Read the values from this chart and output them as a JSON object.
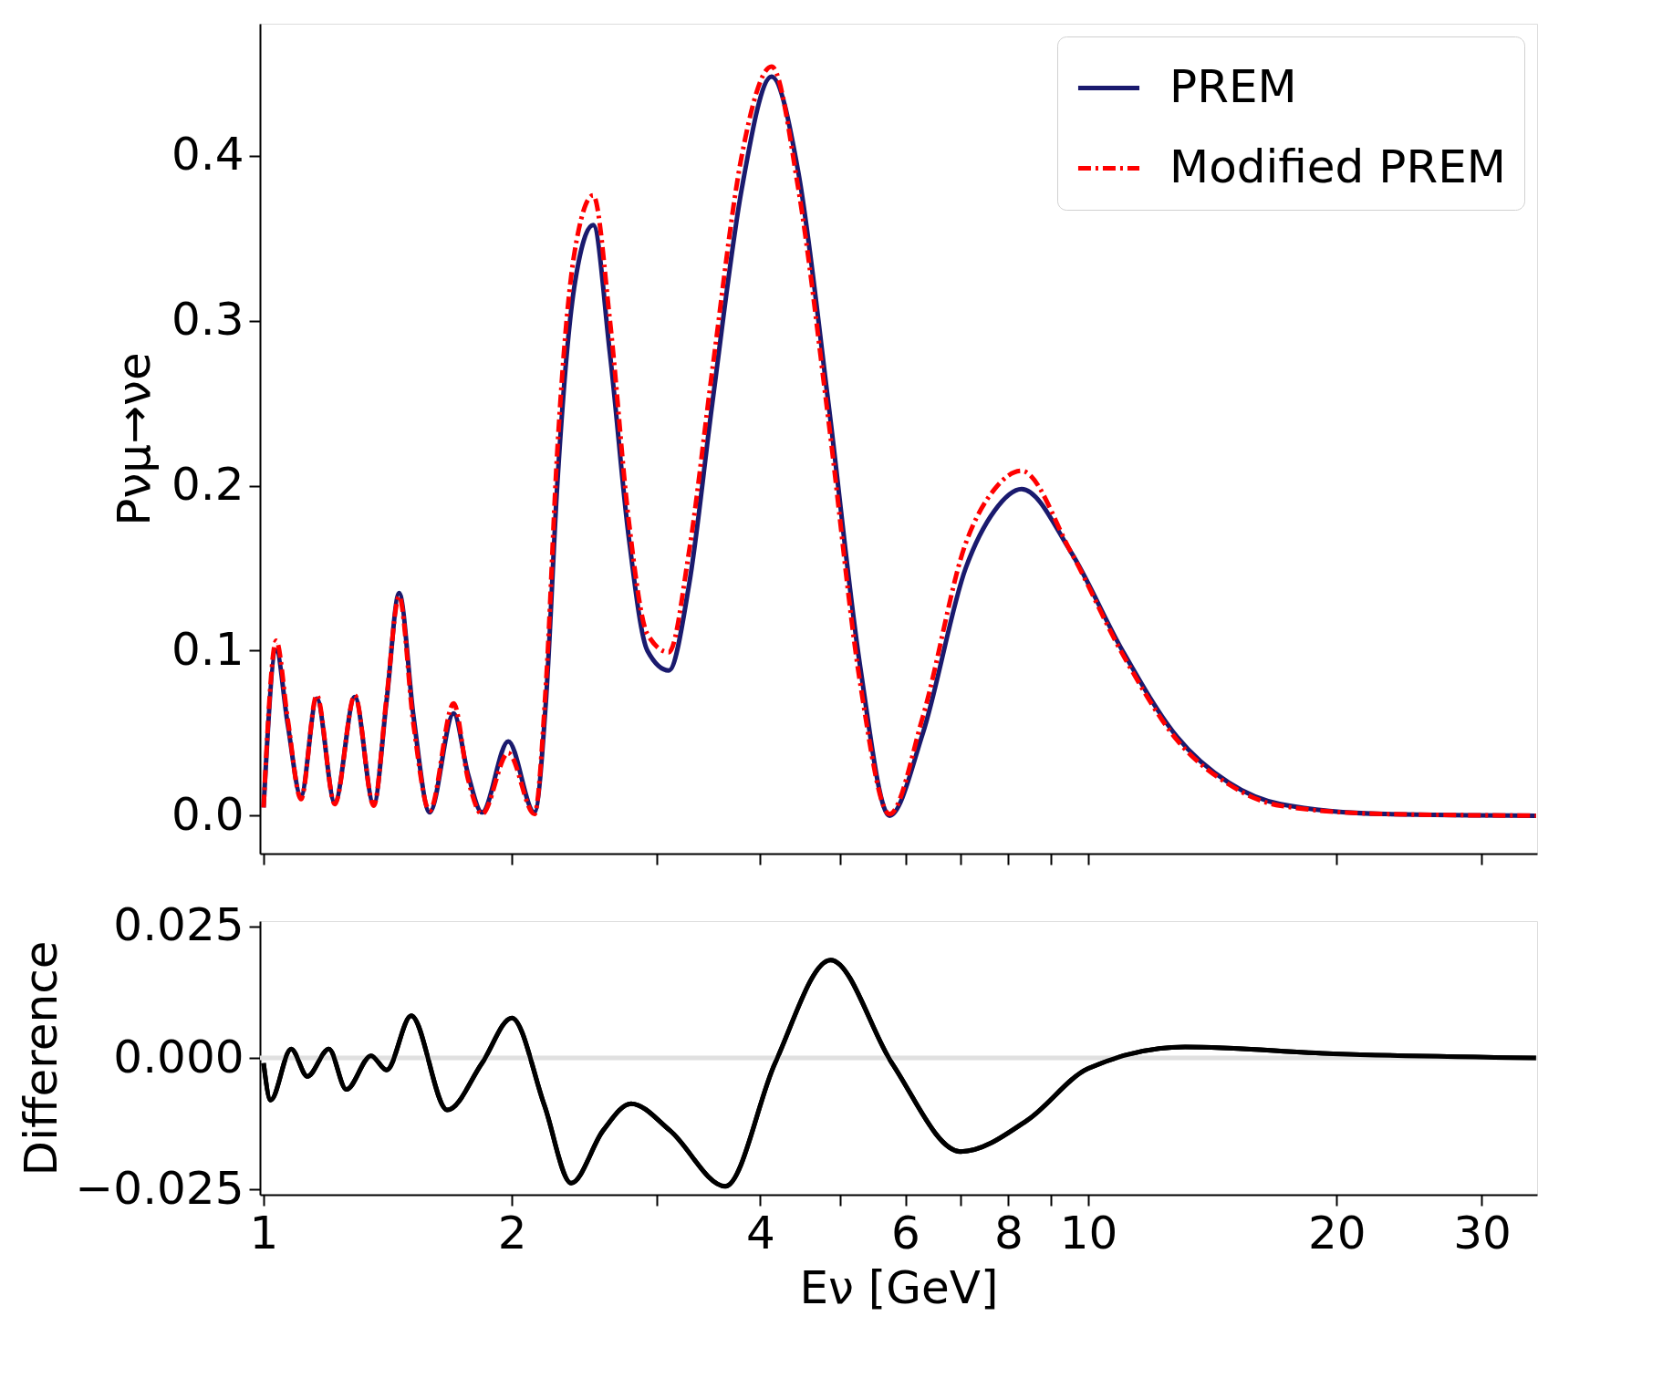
{
  "chart_data": [
    {
      "type": "line",
      "ylabel": "Pνμ→νe",
      "log": "x",
      "grid": false,
      "legend": "top right",
      "tick_labels": "y",
      "xlim": [
        0.99,
        35
      ],
      "ylim": [
        -0.023,
        0.48
      ],
      "xticks": [
        1,
        2,
        {
          "value": 3,
          "label": null
        },
        4,
        {
          "value": 5,
          "label": null
        },
        6,
        {
          "value": 7,
          "label": null
        },
        8,
        {
          "value": 9,
          "label": null
        },
        10,
        20,
        30
      ],
      "yticks": [
        {
          "value": 0,
          "label": "0.0"
        },
        0.1,
        0.2,
        0.3,
        0.4
      ],
      "x": [
        1.0,
        1.036,
        1.07,
        1.11,
        1.16,
        1.22,
        1.29,
        1.36,
        1.41,
        1.46,
        1.52,
        1.59,
        1.7,
        1.77,
        1.84,
        1.98,
        2.13,
        2.2,
        2.27,
        2.38,
        2.51,
        2.63,
        2.77,
        2.92,
        3.1,
        3.28,
        3.5,
        3.8,
        4.13,
        4.45,
        4.84,
        5.29,
        5.74,
        6.3,
        7.1,
        7.7,
        8.3,
        9.52,
        11.0,
        12.8,
        14.8,
        17.1,
        22.9,
        34.9
      ],
      "series": [
        {
          "name": "PREM",
          "color": "#1a1a6e",
          "line_style": "solid",
          "values": [
            0.005,
            0.1,
            0.055,
            0.012,
            0.071,
            0.008,
            0.072,
            0.007,
            0.07,
            0.135,
            0.06,
            0.002,
            0.062,
            0.025,
            0.002,
            0.045,
            0.002,
            0.07,
            0.2,
            0.32,
            0.358,
            0.28,
            0.17,
            0.1,
            0.088,
            0.14,
            0.25,
            0.38,
            0.448,
            0.39,
            0.25,
            0.09,
            0.0,
            0.05,
            0.15,
            0.185,
            0.198,
            0.16,
            0.1,
            0.048,
            0.02,
            0.007,
            0.001,
            0.0
          ]
        },
        {
          "name": "Modified PREM",
          "color": "#ff0000",
          "line_style": "dashed",
          "values": [
            0.005,
            0.106,
            0.058,
            0.01,
            0.073,
            0.007,
            0.073,
            0.006,
            0.072,
            0.133,
            0.055,
            0.003,
            0.068,
            0.022,
            0.001,
            0.038,
            0.001,
            0.08,
            0.22,
            0.34,
            0.376,
            0.3,
            0.18,
            0.11,
            0.099,
            0.16,
            0.27,
            0.4,
            0.454,
            0.38,
            0.24,
            0.08,
            0.001,
            0.06,
            0.165,
            0.198,
            0.209,
            0.16,
            0.098,
            0.046,
            0.019,
            0.006,
            0.001,
            0.0
          ]
        }
      ]
    },
    {
      "type": "line",
      "xlabel": "Eν [GeV]",
      "ylabel": "Difference",
      "log": "x",
      "grid": false,
      "xlim": [
        0.99,
        35
      ],
      "ylim": [
        -0.026,
        0.026
      ],
      "xticks": [
        1,
        2,
        {
          "value": 3,
          "label": null
        },
        4,
        {
          "value": 5,
          "label": null
        },
        6,
        {
          "value": 7,
          "label": null
        },
        8,
        {
          "value": 9,
          "label": null
        },
        10,
        20,
        30
      ],
      "yticks": [
        {
          "value": -0.025,
          "label": "−0.025"
        },
        {
          "value": 0,
          "label": "0.000"
        },
        {
          "value": 0.025,
          "label": "0.025"
        }
      ],
      "ref_lines": [
        {
          "axis": "y",
          "value": 0,
          "color": "#e0e0e0"
        }
      ],
      "x": [
        1.0,
        1.02,
        1.08,
        1.13,
        1.2,
        1.26,
        1.35,
        1.41,
        1.51,
        1.67,
        1.84,
        2.0,
        2.19,
        2.36,
        2.58,
        2.79,
        3.11,
        3.63,
        4.17,
        4.87,
        5.78,
        7.0,
        8.44,
        10.0,
        13.1,
        19.8,
        34.9
      ],
      "series": [
        {
          "color": "#000000",
          "values": [
            -0.001,
            -0.008,
            0.0017,
            -0.0035,
            0.0017,
            -0.006,
            0.0004,
            -0.0023,
            0.008,
            -0.0099,
            -0.001,
            0.0076,
            -0.009,
            -0.0238,
            -0.0138,
            -0.0087,
            -0.0138,
            -0.0244,
            -0.001,
            0.0186,
            -0.001,
            -0.0178,
            -0.0118,
            -0.002,
            0.0021,
            0.0008,
            0.0
          ]
        }
      ]
    }
  ]
}
